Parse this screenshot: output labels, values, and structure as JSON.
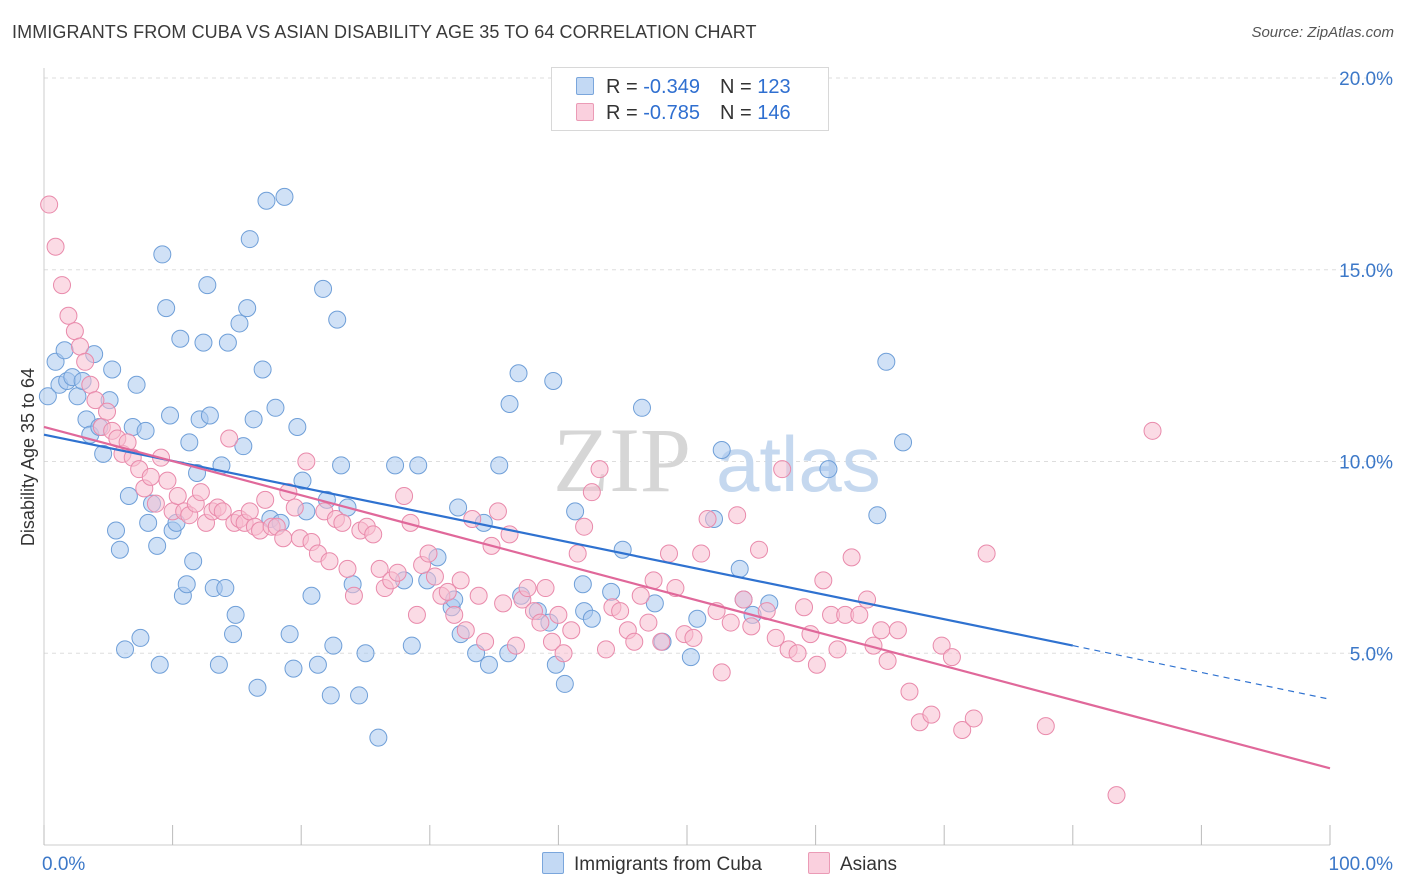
{
  "title": "IMMIGRANTS FROM CUBA VS ASIAN DISABILITY AGE 35 TO 64 CORRELATION CHART",
  "source": "Source: ZipAtlas.com",
  "legend": {
    "rows": [
      {
        "r_label": "R = ",
        "r_value": "-0.349",
        "n_label": "N = ",
        "n_value": "123"
      },
      {
        "r_label": "R = ",
        "r_value": "-0.785",
        "n_label": "N = ",
        "n_value": "146"
      }
    ]
  },
  "watermark": {
    "zip": "ZIP",
    "atlas": "atlas"
  },
  "colors": {
    "cuba_fill": "#a9c8ee",
    "cuba_stroke": "#6f9fd8",
    "cuba_line": "#2f72d0",
    "asian_fill": "#f7bdd0",
    "asian_stroke": "#e98aab",
    "asian_line": "#e0689a",
    "grid": "#dddddd",
    "tick_label": "#3c78c8"
  },
  "chart_data": {
    "type": "scatter",
    "title": "IMMIGRANTS FROM CUBA VS ASIAN DISABILITY AGE 35 TO 64 CORRELATION CHART",
    "xlabel": "",
    "ylabel": "Disability Age 35 to 64",
    "xlim": [
      0,
      100
    ],
    "ylim": [
      0,
      20
    ],
    "x_tick_labels": [
      "0.0%",
      "100.0%"
    ],
    "y_ticks": [
      5,
      10,
      15,
      20
    ],
    "y_tick_labels": [
      "5.0%",
      "10.0%",
      "15.0%",
      "20.0%"
    ],
    "grid": true,
    "legend_position": "top-center",
    "series": [
      {
        "name": "Immigrants from Cuba",
        "R": -0.349,
        "N": 123,
        "trend": {
          "x0": 0,
          "y0": 10.7,
          "x1": 80,
          "y1": 5.2,
          "dashed_to_x": 100,
          "dashed_to_y": 3.8
        },
        "points": [
          [
            0.3,
            11.7
          ],
          [
            0.9,
            12.6
          ],
          [
            1.2,
            12.0
          ],
          [
            1.6,
            12.9
          ],
          [
            1.8,
            12.1
          ],
          [
            2.2,
            12.2
          ],
          [
            2.6,
            11.7
          ],
          [
            3.0,
            12.1
          ],
          [
            3.3,
            11.1
          ],
          [
            3.6,
            10.7
          ],
          [
            3.9,
            12.8
          ],
          [
            4.3,
            10.9
          ],
          [
            4.6,
            10.2
          ],
          [
            5.1,
            11.6
          ],
          [
            5.3,
            12.4
          ],
          [
            5.6,
            8.2
          ],
          [
            5.9,
            7.7
          ],
          [
            6.3,
            5.1
          ],
          [
            6.6,
            9.1
          ],
          [
            6.9,
            10.9
          ],
          [
            7.2,
            12.0
          ],
          [
            7.5,
            5.4
          ],
          [
            7.9,
            10.8
          ],
          [
            8.1,
            8.4
          ],
          [
            8.4,
            8.9
          ],
          [
            8.8,
            7.8
          ],
          [
            9.0,
            4.7
          ],
          [
            9.2,
            15.4
          ],
          [
            9.5,
            14.0
          ],
          [
            9.8,
            11.2
          ],
          [
            10.0,
            8.2
          ],
          [
            10.3,
            8.4
          ],
          [
            10.6,
            13.2
          ],
          [
            10.8,
            6.5
          ],
          [
            11.1,
            6.8
          ],
          [
            11.3,
            10.5
          ],
          [
            11.6,
            7.4
          ],
          [
            11.9,
            9.7
          ],
          [
            12.1,
            11.1
          ],
          [
            12.4,
            13.1
          ],
          [
            12.7,
            14.6
          ],
          [
            12.9,
            11.2
          ],
          [
            13.2,
            6.7
          ],
          [
            13.6,
            4.7
          ],
          [
            13.8,
            9.9
          ],
          [
            14.1,
            6.7
          ],
          [
            14.3,
            13.1
          ],
          [
            14.7,
            5.5
          ],
          [
            14.9,
            6.0
          ],
          [
            15.2,
            13.6
          ],
          [
            15.5,
            10.4
          ],
          [
            15.8,
            14.0
          ],
          [
            16.0,
            15.8
          ],
          [
            16.3,
            11.1
          ],
          [
            16.6,
            4.1
          ],
          [
            17.0,
            12.4
          ],
          [
            17.3,
            16.8
          ],
          [
            17.6,
            8.5
          ],
          [
            18.0,
            11.4
          ],
          [
            18.4,
            8.4
          ],
          [
            18.7,
            16.9
          ],
          [
            19.1,
            5.5
          ],
          [
            19.4,
            4.6
          ],
          [
            19.7,
            10.9
          ],
          [
            20.1,
            9.5
          ],
          [
            20.4,
            8.7
          ],
          [
            20.8,
            6.5
          ],
          [
            21.3,
            4.7
          ],
          [
            21.7,
            14.5
          ],
          [
            22.0,
            9.0
          ],
          [
            22.3,
            3.9
          ],
          [
            22.5,
            5.2
          ],
          [
            22.8,
            13.7
          ],
          [
            23.1,
            9.9
          ],
          [
            23.6,
            8.8
          ],
          [
            24.0,
            6.8
          ],
          [
            24.5,
            3.9
          ],
          [
            25.0,
            5.0
          ],
          [
            26.0,
            2.8
          ],
          [
            27.3,
            9.9
          ],
          [
            28.0,
            6.9
          ],
          [
            28.6,
            5.2
          ],
          [
            29.1,
            9.9
          ],
          [
            29.8,
            6.9
          ],
          [
            30.6,
            7.5
          ],
          [
            31.7,
            6.2
          ],
          [
            32.2,
            8.8
          ],
          [
            31.9,
            6.4
          ],
          [
            32.4,
            5.5
          ],
          [
            33.6,
            5.0
          ],
          [
            34.2,
            8.4
          ],
          [
            34.6,
            4.7
          ],
          [
            35.4,
            9.9
          ],
          [
            36.2,
            11.5
          ],
          [
            36.9,
            12.3
          ],
          [
            36.1,
            5.0
          ],
          [
            37.1,
            6.5
          ],
          [
            38.4,
            6.1
          ],
          [
            39.3,
            5.8
          ],
          [
            39.6,
            12.1
          ],
          [
            39.8,
            4.7
          ],
          [
            40.5,
            4.2
          ],
          [
            41.3,
            8.7
          ],
          [
            41.9,
            6.8
          ],
          [
            42.0,
            6.1
          ],
          [
            42.6,
            5.9
          ],
          [
            44.1,
            6.6
          ],
          [
            45.0,
            7.7
          ],
          [
            46.5,
            11.4
          ],
          [
            47.5,
            6.3
          ],
          [
            48.1,
            5.3
          ],
          [
            50.3,
            4.9
          ],
          [
            50.8,
            5.9
          ],
          [
            52.1,
            8.5
          ],
          [
            52.7,
            10.3
          ],
          [
            54.1,
            7.2
          ],
          [
            54.4,
            6.4
          ],
          [
            55.1,
            6.0
          ],
          [
            56.4,
            6.3
          ],
          [
            61.0,
            9.8
          ],
          [
            64.8,
            8.6
          ],
          [
            65.5,
            12.6
          ],
          [
            66.8,
            10.5
          ]
        ]
      },
      {
        "name": "Asians",
        "R": -0.785,
        "N": 146,
        "trend": {
          "x0": 0,
          "y0": 10.9,
          "x1": 100,
          "y1": 2.0
        },
        "points": [
          [
            0.4,
            16.7
          ],
          [
            0.9,
            15.6
          ],
          [
            1.4,
            14.6
          ],
          [
            1.9,
            13.8
          ],
          [
            2.4,
            13.4
          ],
          [
            2.8,
            13.0
          ],
          [
            3.2,
            12.6
          ],
          [
            3.6,
            12.0
          ],
          [
            4.0,
            11.6
          ],
          [
            4.5,
            10.9
          ],
          [
            4.9,
            11.3
          ],
          [
            5.3,
            10.8
          ],
          [
            5.7,
            10.6
          ],
          [
            6.1,
            10.2
          ],
          [
            6.5,
            10.5
          ],
          [
            6.9,
            10.1
          ],
          [
            7.4,
            9.8
          ],
          [
            7.8,
            9.3
          ],
          [
            8.3,
            9.6
          ],
          [
            8.7,
            8.9
          ],
          [
            9.1,
            10.1
          ],
          [
            9.6,
            9.5
          ],
          [
            10.0,
            8.7
          ],
          [
            10.4,
            9.1
          ],
          [
            10.9,
            8.7
          ],
          [
            11.3,
            8.6
          ],
          [
            11.8,
            8.9
          ],
          [
            12.2,
            9.2
          ],
          [
            12.6,
            8.4
          ],
          [
            13.1,
            8.7
          ],
          [
            13.5,
            8.8
          ],
          [
            13.9,
            8.7
          ],
          [
            14.4,
            10.6
          ],
          [
            14.8,
            8.4
          ],
          [
            15.2,
            8.5
          ],
          [
            15.6,
            8.4
          ],
          [
            16.0,
            8.7
          ],
          [
            16.4,
            8.3
          ],
          [
            16.8,
            8.2
          ],
          [
            17.2,
            9.0
          ],
          [
            17.7,
            8.3
          ],
          [
            18.1,
            8.3
          ],
          [
            18.6,
            8.0
          ],
          [
            19.0,
            9.2
          ],
          [
            19.5,
            8.8
          ],
          [
            19.9,
            8.0
          ],
          [
            20.4,
            10.0
          ],
          [
            20.8,
            7.9
          ],
          [
            21.3,
            7.6
          ],
          [
            21.8,
            8.7
          ],
          [
            22.2,
            7.4
          ],
          [
            22.7,
            8.5
          ],
          [
            23.2,
            8.4
          ],
          [
            23.6,
            7.2
          ],
          [
            24.1,
            6.5
          ],
          [
            24.6,
            8.2
          ],
          [
            25.1,
            8.3
          ],
          [
            25.6,
            8.1
          ],
          [
            26.1,
            7.2
          ],
          [
            26.5,
            6.7
          ],
          [
            27.0,
            6.9
          ],
          [
            27.5,
            7.1
          ],
          [
            28.0,
            9.1
          ],
          [
            28.5,
            8.4
          ],
          [
            29.0,
            6.0
          ],
          [
            29.4,
            7.3
          ],
          [
            29.9,
            7.6
          ],
          [
            30.4,
            7.0
          ],
          [
            30.9,
            6.5
          ],
          [
            31.4,
            6.6
          ],
          [
            31.9,
            6.0
          ],
          [
            32.4,
            6.9
          ],
          [
            32.8,
            5.6
          ],
          [
            33.3,
            8.5
          ],
          [
            33.8,
            6.5
          ],
          [
            34.3,
            5.3
          ],
          [
            34.8,
            7.8
          ],
          [
            35.3,
            8.7
          ],
          [
            35.7,
            6.3
          ],
          [
            36.2,
            8.1
          ],
          [
            36.7,
            5.2
          ],
          [
            37.2,
            6.4
          ],
          [
            37.6,
            6.7
          ],
          [
            38.1,
            6.1
          ],
          [
            38.6,
            5.8
          ],
          [
            39.0,
            6.7
          ],
          [
            39.5,
            5.3
          ],
          [
            40.0,
            6.0
          ],
          [
            40.4,
            5.0
          ],
          [
            41.0,
            5.6
          ],
          [
            41.5,
            7.6
          ],
          [
            42.0,
            8.3
          ],
          [
            42.6,
            9.2
          ],
          [
            43.2,
            9.8
          ],
          [
            43.7,
            5.1
          ],
          [
            44.2,
            6.2
          ],
          [
            44.8,
            6.1
          ],
          [
            45.4,
            5.6
          ],
          [
            45.9,
            5.3
          ],
          [
            46.4,
            6.5
          ],
          [
            47.0,
            5.8
          ],
          [
            47.4,
            6.9
          ],
          [
            48.0,
            5.3
          ],
          [
            48.6,
            7.6
          ],
          [
            49.1,
            6.7
          ],
          [
            49.8,
            5.5
          ],
          [
            50.5,
            5.4
          ],
          [
            51.1,
            7.6
          ],
          [
            51.6,
            8.5
          ],
          [
            52.3,
            6.1
          ],
          [
            52.7,
            4.5
          ],
          [
            53.4,
            5.8
          ],
          [
            53.9,
            8.6
          ],
          [
            54.4,
            6.4
          ],
          [
            55.0,
            5.7
          ],
          [
            55.6,
            7.7
          ],
          [
            56.2,
            6.1
          ],
          [
            56.9,
            5.4
          ],
          [
            57.4,
            9.8
          ],
          [
            57.9,
            5.1
          ],
          [
            58.6,
            5.0
          ],
          [
            59.1,
            6.2
          ],
          [
            59.6,
            5.5
          ],
          [
            60.1,
            4.7
          ],
          [
            60.6,
            6.9
          ],
          [
            61.2,
            6.0
          ],
          [
            61.7,
            5.1
          ],
          [
            62.3,
            6.0
          ],
          [
            62.8,
            7.5
          ],
          [
            63.4,
            6.0
          ],
          [
            64.0,
            6.4
          ],
          [
            64.5,
            5.2
          ],
          [
            65.1,
            5.6
          ],
          [
            65.6,
            4.8
          ],
          [
            66.4,
            5.6
          ],
          [
            67.3,
            4.0
          ],
          [
            68.1,
            3.2
          ],
          [
            69.0,
            3.4
          ],
          [
            69.8,
            5.2
          ],
          [
            70.6,
            4.9
          ],
          [
            71.4,
            3.0
          ],
          [
            72.3,
            3.3
          ],
          [
            77.9,
            3.1
          ],
          [
            83.4,
            1.3
          ],
          [
            86.2,
            10.8
          ],
          [
            73.3,
            7.6
          ]
        ]
      }
    ]
  },
  "bottom_legend": [
    "Immigrants from Cuba",
    "Asians"
  ]
}
